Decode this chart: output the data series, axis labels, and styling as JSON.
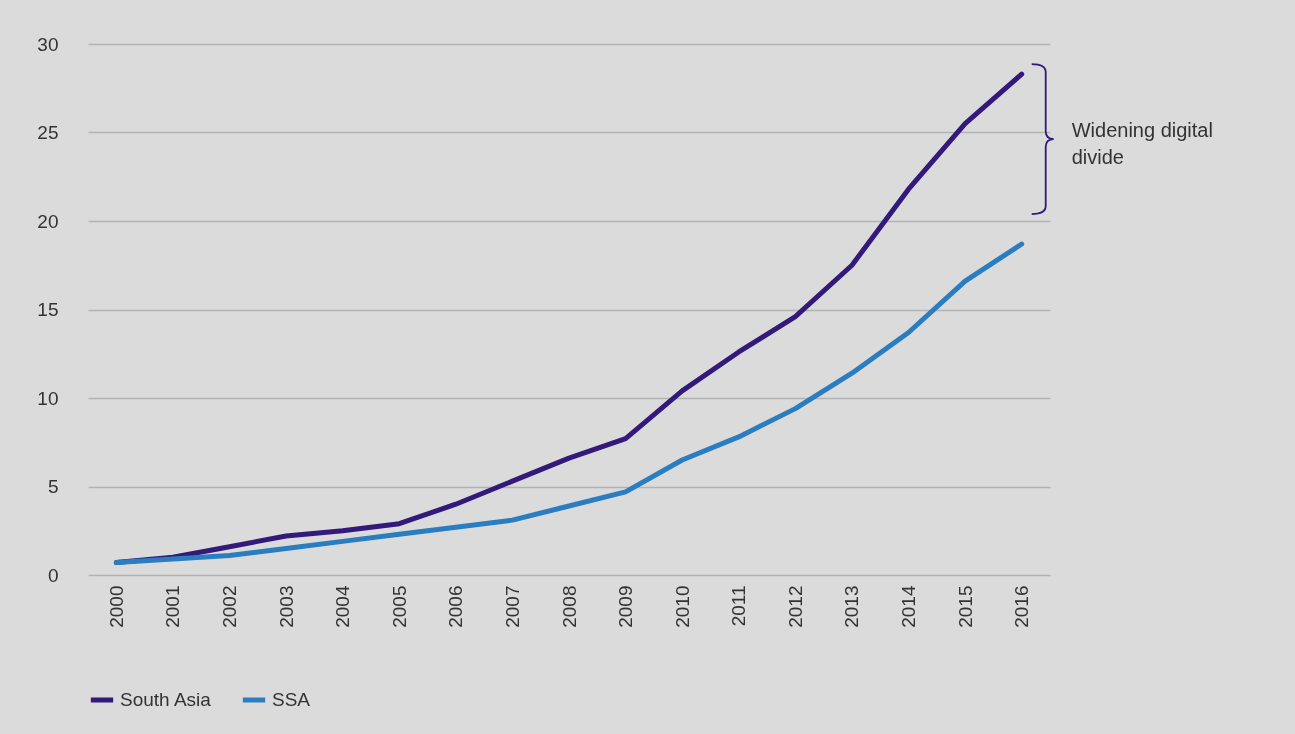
{
  "chart_data": {
    "type": "line",
    "categories": [
      "2000",
      "2001",
      "2002",
      "2003",
      "2004",
      "2005",
      "2006",
      "2007",
      "2008",
      "2009",
      "2010",
      "2011",
      "2012",
      "2013",
      "2014",
      "2015",
      "2016"
    ],
    "series": [
      {
        "name": "South Asia",
        "color": "#32197a",
        "values": [
          0.7,
          1.0,
          1.6,
          2.2,
          2.5,
          2.9,
          4.0,
          5.3,
          6.6,
          7.7,
          10.4,
          12.6,
          14.6,
          17.5,
          21.8,
          25.5,
          28.3
        ]
      },
      {
        "name": "SSA",
        "color": "#2a7dc0",
        "values": [
          0.7,
          0.9,
          1.1,
          1.5,
          1.9,
          2.3,
          2.7,
          3.1,
          3.9,
          4.7,
          6.5,
          7.8,
          9.4,
          11.4,
          13.7,
          16.6,
          18.7
        ]
      }
    ],
    "ylim": [
      0,
      30
    ],
    "yticks": [
      0,
      5,
      10,
      15,
      20,
      25,
      30
    ],
    "grid": "y",
    "legend": "bottom",
    "marker": "none",
    "line_style": "solid",
    "annotations": [
      "Widening digital divide"
    ]
  }
}
